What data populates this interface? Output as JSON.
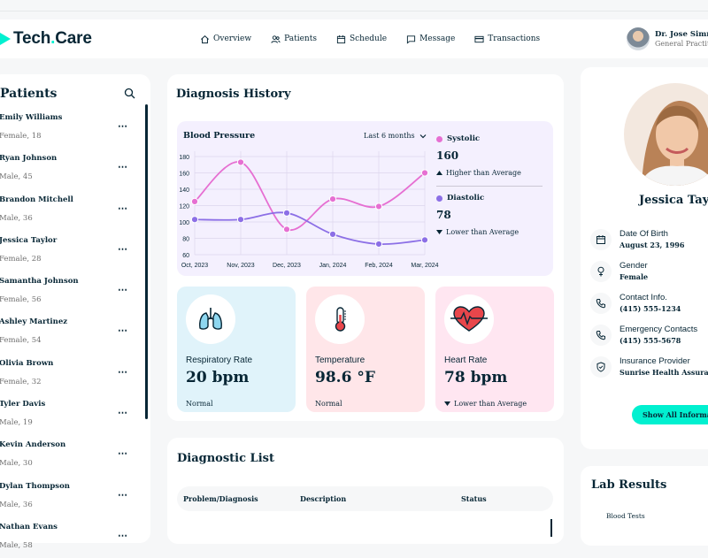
{
  "brand": {
    "name_main": "Tech",
    "name_dot": ".",
    "name_end": "Care"
  },
  "nav": [
    {
      "label": "Overview",
      "icon": "home-icon"
    },
    {
      "label": "Patients",
      "icon": "users-icon"
    },
    {
      "label": "Schedule",
      "icon": "calendar-icon"
    },
    {
      "label": "Message",
      "icon": "message-icon"
    },
    {
      "label": "Transactions",
      "icon": "credit-card-icon"
    }
  ],
  "user": {
    "name": "Dr. Jose Simmons",
    "role": "General Practitioner"
  },
  "patients": {
    "title": "Patients",
    "items": [
      {
        "name": "Emily Williams",
        "sub": "Female, 18"
      },
      {
        "name": "Ryan Johnson",
        "sub": "Male, 45"
      },
      {
        "name": "Brandon Mitchell",
        "sub": "Male, 36"
      },
      {
        "name": "Jessica Taylor",
        "sub": "Female, 28"
      },
      {
        "name": "Samantha Johnson",
        "sub": "Female, 56"
      },
      {
        "name": "Ashley Martinez",
        "sub": "Female, 54"
      },
      {
        "name": "Olivia Brown",
        "sub": "Female, 32"
      },
      {
        "name": "Tyler Davis",
        "sub": "Male, 19"
      },
      {
        "name": "Kevin Anderson",
        "sub": "Male, 30"
      },
      {
        "name": "Dylan Thompson",
        "sub": "Male, 36"
      },
      {
        "name": "Nathan Evans",
        "sub": "Male, 58"
      }
    ]
  },
  "diagnosis": {
    "title": "Diagnosis History",
    "bp_title": "Blood Pressure",
    "range_label": "Last 6 months",
    "systolic": {
      "label": "Systolic",
      "value": "160",
      "note": "Higher than Average",
      "color": "#E66FD2"
    },
    "diastolic": {
      "label": "Diastolic",
      "value": "78",
      "note": "Lower than Average",
      "color": "#8C6FE6"
    }
  },
  "chart_data": {
    "type": "line",
    "title": "Blood Pressure",
    "categories": [
      "Oct, 2023",
      "Nov, 2023",
      "Dec, 2023",
      "Jan, 2024",
      "Feb, 2024",
      "Mar, 2024"
    ],
    "series": [
      {
        "name": "Systolic",
        "values": [
          125,
          173,
          91,
          128,
          119,
          160
        ],
        "color": "#E66FD2"
      },
      {
        "name": "Diastolic",
        "values": [
          103,
          103,
          111,
          85,
          73,
          78
        ],
        "color": "#8C6FE6"
      }
    ],
    "yticks": [
      60,
      80,
      100,
      120,
      140,
      160,
      180
    ],
    "ylim": [
      60,
      180
    ],
    "grid": true
  },
  "vitals": [
    {
      "label": "Respiratory Rate",
      "value": "20 bpm",
      "status": "Normal",
      "bg": "#E0F3FA",
      "icon": "lungs-icon",
      "arrow": false
    },
    {
      "label": "Temperature",
      "value": "98.6 °F",
      "status": "Normal",
      "bg": "#FFE6E9",
      "icon": "thermometer-icon",
      "arrow": false
    },
    {
      "label": "Heart Rate",
      "value": "78 bpm",
      "status": "Lower than Average",
      "bg": "#FFE6F1",
      "icon": "heart-icon",
      "arrow": true
    }
  ],
  "diag_list": {
    "title": "Diagnostic List",
    "columns": [
      "Problem/Diagnosis",
      "Description",
      "Status"
    ]
  },
  "profile": {
    "name": "Jessica Taylor",
    "rows": [
      {
        "label": "Date Of Birth",
        "value": "August 23, 1996",
        "icon": "calendar-icon"
      },
      {
        "label": "Gender",
        "value": "Female",
        "icon": "female-icon"
      },
      {
        "label": "Contact Info.",
        "value": "(415) 555-1234",
        "icon": "phone-icon"
      },
      {
        "label": "Emergency Contacts",
        "value": "(415) 555-5678",
        "icon": "phone-icon"
      },
      {
        "label": "Insurance Provider",
        "value": "Sunrise Health Assurance",
        "icon": "shield-icon"
      }
    ],
    "button": "Show All Information"
  },
  "lab": {
    "title": "Lab Results",
    "items": [
      "Blood Tests"
    ]
  }
}
